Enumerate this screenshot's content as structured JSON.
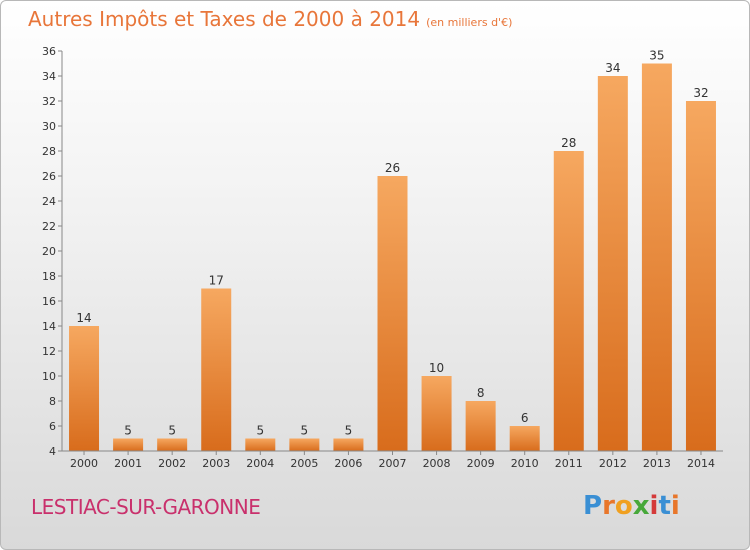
{
  "title": "Autres Impôts et Taxes de 2000 à 2014",
  "unit": "(en milliers d'€)",
  "commune": "LESTIAC-SUR-GARONNE",
  "brand": {
    "letters": [
      "P",
      "r",
      "o",
      "x",
      "i",
      "t",
      "i"
    ],
    "colors": [
      "#3a8fd4",
      "#e8762a",
      "#f0a020",
      "#47a83a",
      "#d43a3a",
      "#3a8fd4",
      "#e8762a"
    ]
  },
  "colors": {
    "bar_top": "#f6a860",
    "bar_bottom": "#d86c1c",
    "title": "#e8763a",
    "commune": "#c9306c"
  },
  "chart_data": {
    "type": "bar",
    "categories": [
      "2000",
      "2001",
      "2002",
      "2003",
      "2004",
      "2005",
      "2006",
      "2007",
      "2008",
      "2009",
      "2010",
      "2011",
      "2012",
      "2013",
      "2014"
    ],
    "values": [
      14,
      5,
      5,
      17,
      5,
      5,
      5,
      26,
      10,
      8,
      6,
      28,
      34,
      35,
      32
    ],
    "labels": [
      "14",
      "5",
      "5",
      "17",
      "5",
      "5",
      "5",
      "26",
      "10",
      "8",
      "6",
      "28",
      "34",
      "35",
      "32"
    ],
    "title": "Autres Impôts et Taxes de 2000 à 2014",
    "xlabel": "",
    "ylabel": "",
    "ylim": [
      4,
      36
    ],
    "yticks": [
      4,
      6,
      8,
      10,
      12,
      14,
      16,
      18,
      20,
      22,
      24,
      26,
      28,
      30,
      32,
      34,
      36
    ],
    "grid": false,
    "legend": "none"
  }
}
